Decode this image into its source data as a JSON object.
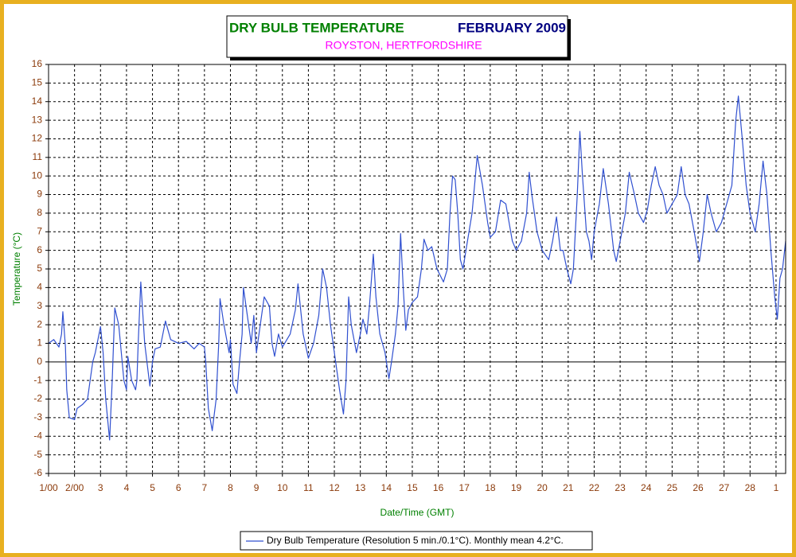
{
  "chart_data": {
    "type": "line",
    "title": "DRY BULB TEMPERATURE",
    "title_right": "FEBRUARY 2009",
    "subtitle": "ROYSTON, HERTFORDSHIRE",
    "xlabel": "Date/Time (GMT)",
    "ylabel": "Temperature (°C)",
    "grid": true,
    "xlim": [
      0,
      28.37
    ],
    "ylim": [
      -6,
      16
    ],
    "yticks": [
      -6,
      -5,
      -4,
      -3,
      -2,
      -1,
      0,
      1,
      2,
      3,
      4,
      5,
      6,
      7,
      8,
      9,
      10,
      11,
      12,
      13,
      14,
      15,
      16
    ],
    "xticks": [
      {
        "value": 0,
        "label": "1/00"
      },
      {
        "value": 1,
        "label": "2/00"
      },
      {
        "value": 2,
        "label": "3"
      },
      {
        "value": 3,
        "label": "4"
      },
      {
        "value": 4,
        "label": "5"
      },
      {
        "value": 5,
        "label": "6"
      },
      {
        "value": 6,
        "label": "7"
      },
      {
        "value": 7,
        "label": "8"
      },
      {
        "value": 8,
        "label": "9"
      },
      {
        "value": 9,
        "label": "10"
      },
      {
        "value": 10,
        "label": "11"
      },
      {
        "value": 11,
        "label": "12"
      },
      {
        "value": 12,
        "label": "13"
      },
      {
        "value": 13,
        "label": "14"
      },
      {
        "value": 14,
        "label": "15"
      },
      {
        "value": 15,
        "label": "16"
      },
      {
        "value": 16,
        "label": "17"
      },
      {
        "value": 17,
        "label": "18"
      },
      {
        "value": 18,
        "label": "19"
      },
      {
        "value": 19,
        "label": "20"
      },
      {
        "value": 20,
        "label": "21"
      },
      {
        "value": 21,
        "label": "22"
      },
      {
        "value": 22,
        "label": "23"
      },
      {
        "value": 23,
        "label": "24"
      },
      {
        "value": 24,
        "label": "25"
      },
      {
        "value": 25,
        "label": "26"
      },
      {
        "value": 26,
        "label": "27"
      },
      {
        "value": 27,
        "label": "28"
      },
      {
        "value": 28,
        "label": "1"
      }
    ],
    "x": [
      0,
      0.2,
      0.4,
      0.5,
      0.55,
      0.65,
      0.7,
      0.8,
      1.0,
      1.1,
      1.3,
      1.5,
      1.6,
      1.7,
      1.8,
      2.0,
      2.1,
      2.2,
      2.35,
      2.45,
      2.55,
      2.7,
      2.9,
      3.0,
      3.05,
      3.2,
      3.35,
      3.4,
      3.45,
      3.55,
      3.7,
      3.9,
      4.0,
      4.1,
      4.3,
      4.5,
      4.7,
      5.0,
      5.3,
      5.6,
      5.8,
      6.0,
      6.05,
      6.15,
      6.3,
      6.45,
      6.55,
      6.6,
      6.75,
      6.95,
      7.0,
      7.1,
      7.25,
      7.35,
      7.45,
      7.5,
      7.6,
      7.8,
      7.9,
      8.0,
      8.1,
      8.3,
      8.5,
      8.6,
      8.7,
      8.85,
      9.0,
      9.3,
      9.5,
      9.6,
      9.8,
      10.0,
      10.2,
      10.4,
      10.55,
      10.7,
      10.85,
      11.0,
      11.2,
      11.35,
      11.45,
      11.55,
      11.65,
      11.85,
      12.0,
      12.1,
      12.25,
      12.35,
      12.5,
      12.6,
      12.75,
      12.95,
      13.1,
      13.2,
      13.35,
      13.45,
      13.55,
      13.65,
      13.75,
      13.85,
      14.0,
      14.2,
      14.35,
      14.45,
      14.6,
      14.75,
      14.95,
      15.2,
      15.35,
      15.45,
      15.55,
      15.65,
      15.75,
      15.85,
      15.95,
      16.1,
      16.3,
      16.5,
      16.7,
      16.9,
      17.0,
      17.2,
      17.4,
      17.6,
      17.85,
      18.0,
      18.2,
      18.4,
      18.5,
      18.6,
      18.8,
      19.0,
      19.25,
      19.4,
      19.55,
      19.7,
      19.8,
      19.95,
      20.1,
      20.2,
      20.35,
      20.45,
      20.55,
      20.7,
      20.8,
      20.9,
      21.0,
      21.2,
      21.35,
      21.55,
      21.75,
      21.85,
      22.0,
      22.2,
      22.35,
      22.55,
      22.7,
      22.9,
      23.05,
      23.2,
      23.35,
      23.5,
      23.65,
      23.8,
      24.0,
      24.2,
      24.35,
      24.5,
      24.65,
      24.85,
      25.05,
      25.2,
      25.35,
      25.5,
      25.7,
      25.9,
      26.1,
      26.3,
      26.45,
      26.55,
      26.7,
      26.85,
      27.0,
      27.2,
      27.35,
      27.5,
      27.65,
      27.8,
      27.95,
      28.05,
      28.15,
      28.25,
      28.37
    ],
    "series": [
      {
        "name": "Dry Bulb Temperature (Resolution 5 min./0.1°C). Monthly mean 4.2°C.",
        "color": "#3050d0",
        "values": [
          1.0,
          1.2,
          0.8,
          1.5,
          2.7,
          0.8,
          -1.5,
          -3.0,
          -3.1,
          -2.5,
          -2.3,
          -2.0,
          -1.0,
          0,
          0.5,
          1.9,
          0.5,
          -2.0,
          -4.2,
          -1.0,
          2.9,
          2.0,
          -1.0,
          -1.5,
          0.3,
          -1.0,
          -1.5,
          -1.0,
          1.0,
          4.3,
          1.0,
          -1.3,
          0,
          0.7,
          0.8,
          2.2,
          1.2,
          1.0,
          1.1,
          0.7,
          1.0,
          0.8,
          0,
          -2.5,
          -3.7,
          -2.0,
          1.0,
          3.4,
          2.0,
          0.5,
          1.2,
          -1.2,
          -1.7,
          0,
          1.5,
          4.0,
          3.0,
          1.0,
          2.5,
          0.5,
          1.5,
          3.5,
          3.0,
          1.0,
          0.3,
          1.5,
          0.8,
          1.5,
          2.8,
          4.2,
          1.5,
          0.2,
          1.0,
          2.5,
          5.0,
          4.0,
          2.0,
          0.5,
          -1.5,
          -2.8,
          -1.0,
          3.5,
          2.0,
          0.5,
          1.5,
          2.3,
          1.5,
          3.0,
          5.8,
          3.5,
          1.5,
          0.5,
          -0.9,
          0,
          1.5,
          3.0,
          6.9,
          4.0,
          1.7,
          2.8,
          3.2,
          3.5,
          5.0,
          6.6,
          6.0,
          6.2,
          5.0,
          4.3,
          5.0,
          8.0,
          10.0,
          9.8,
          8.0,
          5.5,
          5.0,
          6.3,
          8.0,
          11.1,
          9.5,
          7.5,
          6.7,
          7.0,
          8.7,
          8.5,
          6.5,
          6.0,
          6.5,
          8.0,
          10.2,
          9.0,
          7.0,
          6.0,
          5.5,
          6.5,
          7.8,
          6.0,
          6.0,
          5.0,
          4.2,
          5.0,
          9.0,
          12.4,
          10.0,
          7.0,
          6.5,
          5.5,
          7.0,
          8.5,
          10.4,
          8.5,
          6.0,
          5.4,
          6.5,
          8.0,
          10.2,
          9.0,
          8.0,
          7.5,
          8.2,
          9.5,
          10.5,
          9.5,
          9.0,
          8.0,
          8.5,
          9.0,
          10.5,
          9.0,
          8.5,
          7.0,
          5.4,
          7.0,
          9.0,
          8.0,
          7.0,
          7.5,
          8.5,
          9.5,
          13.0,
          14.3,
          12.0,
          9.5,
          8.0,
          7.0,
          8.5,
          10.8,
          9.0,
          6.0,
          3.5,
          2.3,
          4.5,
          5.0,
          6.5
        ]
      }
    ]
  }
}
